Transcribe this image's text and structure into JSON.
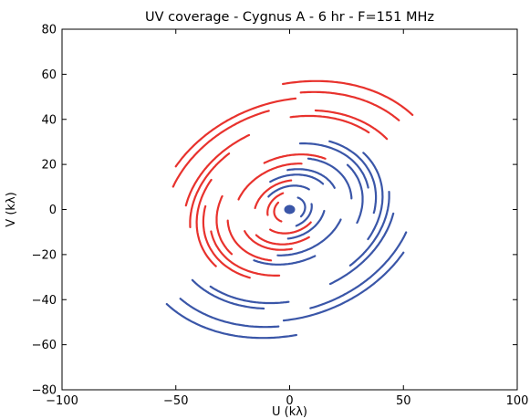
{
  "chart_data": {
    "type": "scatter",
    "title": "UV coverage - Cygnus A - 6 hr - F=151 MHz",
    "xlabel": "U (kλ)",
    "ylabel": "V (kλ)",
    "xlim": [
      -100,
      100
    ],
    "ylim": [
      -80,
      80
    ],
    "xticks": [
      -100,
      -50,
      0,
      50,
      100
    ],
    "yticks": [
      -80,
      -60,
      -40,
      -20,
      0,
      20,
      40,
      60,
      80
    ],
    "xtick_labels": [
      "−100",
      "−50",
      "0",
      "50",
      "100"
    ],
    "ytick_labels": [
      "−80",
      "−60",
      "−40",
      "−20",
      "0",
      "20",
      "40",
      "60",
      "80"
    ],
    "grid": false,
    "legend": "none",
    "ellipse_tilt_deg": 22,
    "ellipse_axis_ratio": 0.78,
    "series": [
      {
        "color": "#e8322d",
        "tracks": [
          {
            "a": 70,
            "t0": 20,
            "t1": 75
          },
          {
            "a": 64,
            "t0": 22,
            "t1": 68
          },
          {
            "a": 61,
            "t0": 70,
            "t1": 130
          },
          {
            "a": 57,
            "t0": 82,
            "t1": 140
          },
          {
            "a": 54,
            "t0": 18,
            "t1": 60
          },
          {
            "a": 51,
            "t0": 28,
            "t1": 72
          },
          {
            "a": 48,
            "t0": 95,
            "t1": 150
          },
          {
            "a": 45,
            "t0": 110,
            "t1": 165
          },
          {
            "a": 42,
            "t0": 130,
            "t1": 200
          },
          {
            "a": 39,
            "t0": 150,
            "t1": 225
          },
          {
            "a": 36,
            "t0": 172,
            "t1": 245
          },
          {
            "a": 33,
            "t0": 140,
            "t1": 200
          },
          {
            "a": 30,
            "t0": 40,
            "t1": 95
          },
          {
            "a": 28,
            "t0": 165,
            "t1": 235
          },
          {
            "a": 25,
            "t0": 60,
            "t1": 140
          },
          {
            "a": 22,
            "t0": 185,
            "t1": 255
          },
          {
            "a": 19,
            "t0": 200,
            "t1": 280
          },
          {
            "a": 16,
            "t0": 70,
            "t1": 150
          },
          {
            "a": 13,
            "t0": 210,
            "t1": 300
          },
          {
            "a": 10,
            "t0": 90,
            "t1": 170
          },
          {
            "a": 7,
            "t0": 120,
            "t1": 220
          }
        ]
      },
      {
        "color": "#3a56a8",
        "tracks": [
          {
            "a": 70,
            "t0": 200,
            "t1": 255
          },
          {
            "a": 64,
            "t0": 202,
            "t1": 248
          },
          {
            "a": 61,
            "t0": 250,
            "t1": 310
          },
          {
            "a": 57,
            "t0": 262,
            "t1": 320
          },
          {
            "a": 54,
            "t0": 198,
            "t1": 240
          },
          {
            "a": 51,
            "t0": 208,
            "t1": 252
          },
          {
            "a": 48,
            "t0": 275,
            "t1": 330
          },
          {
            "a": 45,
            "t0": 290,
            "t1": 345
          },
          {
            "a": 42,
            "t0": 310,
            "t1": 380
          },
          {
            "a": 39,
            "t0": 330,
            "t1": 405
          },
          {
            "a": 36,
            "t0": 352,
            "t1": 425
          },
          {
            "a": 33,
            "t0": 320,
            "t1": 380
          },
          {
            "a": 30,
            "t0": 220,
            "t1": 275
          },
          {
            "a": 28,
            "t0": 345,
            "t1": 415
          },
          {
            "a": 25,
            "t0": 240,
            "t1": 320
          },
          {
            "a": 22,
            "t0": 365,
            "t1": 435
          },
          {
            "a": 19,
            "t0": 380,
            "t1": 460
          },
          {
            "a": 16,
            "t0": 250,
            "t1": 330
          },
          {
            "a": 13,
            "t0": 30,
            "t1": 120
          },
          {
            "a": 10,
            "t0": 270,
            "t1": 350
          },
          {
            "a": 7,
            "t0": 300,
            "t1": 400
          }
        ]
      }
    ]
  }
}
